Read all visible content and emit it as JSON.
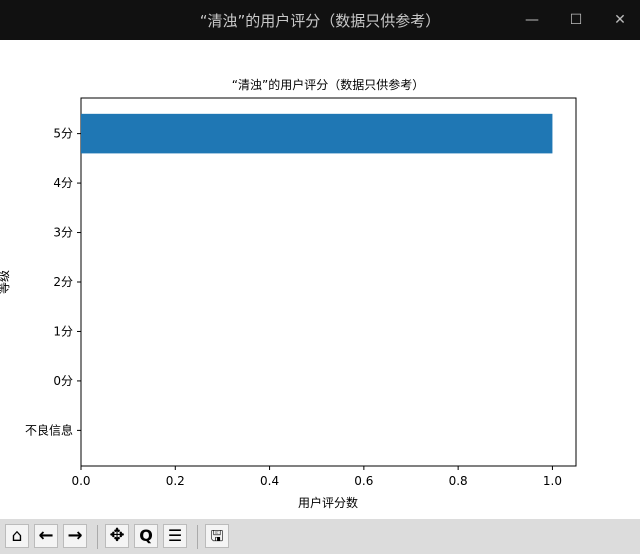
{
  "window": {
    "title": "“清浊”的用户评分（数据只供参考）"
  },
  "toolbar": {
    "icons": [
      "home-icon",
      "back-arrow-icon",
      "forward-arrow-icon",
      "pan-icon",
      "zoom-magnifier-icon",
      "configure-subplots-icon",
      "save-icon"
    ]
  },
  "chart_data": {
    "type": "bar",
    "orientation": "horizontal",
    "title": "“清浊”的用户评分（数据只供参考）",
    "xlabel": "用户评分数",
    "ylabel": "等级",
    "categories": [
      "不良信息",
      "0分",
      "1分",
      "2分",
      "3分",
      "4分",
      "5分"
    ],
    "values": [
      0,
      0,
      0,
      0,
      0,
      0,
      1
    ],
    "xlim": [
      0,
      1.05
    ],
    "xticks": [
      "0.0",
      "0.2",
      "0.4",
      "0.6",
      "0.8",
      "1.0"
    ],
    "bar_color": "#1f77b4",
    "grid": false
  }
}
